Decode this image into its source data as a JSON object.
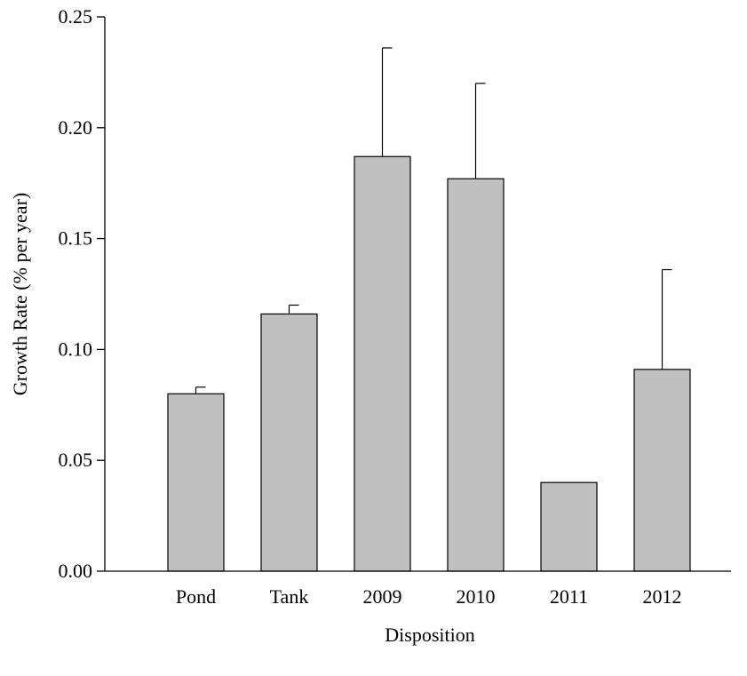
{
  "chart_data": {
    "type": "bar",
    "title": "",
    "xlabel": "Disposition",
    "ylabel": "Growth Rate (% per year)",
    "categories": [
      "Pond",
      "Tank",
      "2009",
      "2010",
      "2011",
      "2012"
    ],
    "values": [
      0.08,
      0.116,
      0.187,
      0.177,
      0.04,
      0.091
    ],
    "error_plus": [
      0.003,
      0.004,
      0.049,
      0.043,
      0.0,
      0.045
    ],
    "ylim": [
      0,
      0.25
    ],
    "yticks": [
      0.0,
      0.05,
      0.1,
      0.15,
      0.2,
      0.25
    ],
    "ytick_labels": [
      "0.00",
      "0.05",
      "0.10",
      "0.15",
      "0.20",
      "0.25"
    ],
    "grid": false,
    "legend": "none",
    "bar_color": "#c0c0c0",
    "edge_color": "#000000"
  }
}
